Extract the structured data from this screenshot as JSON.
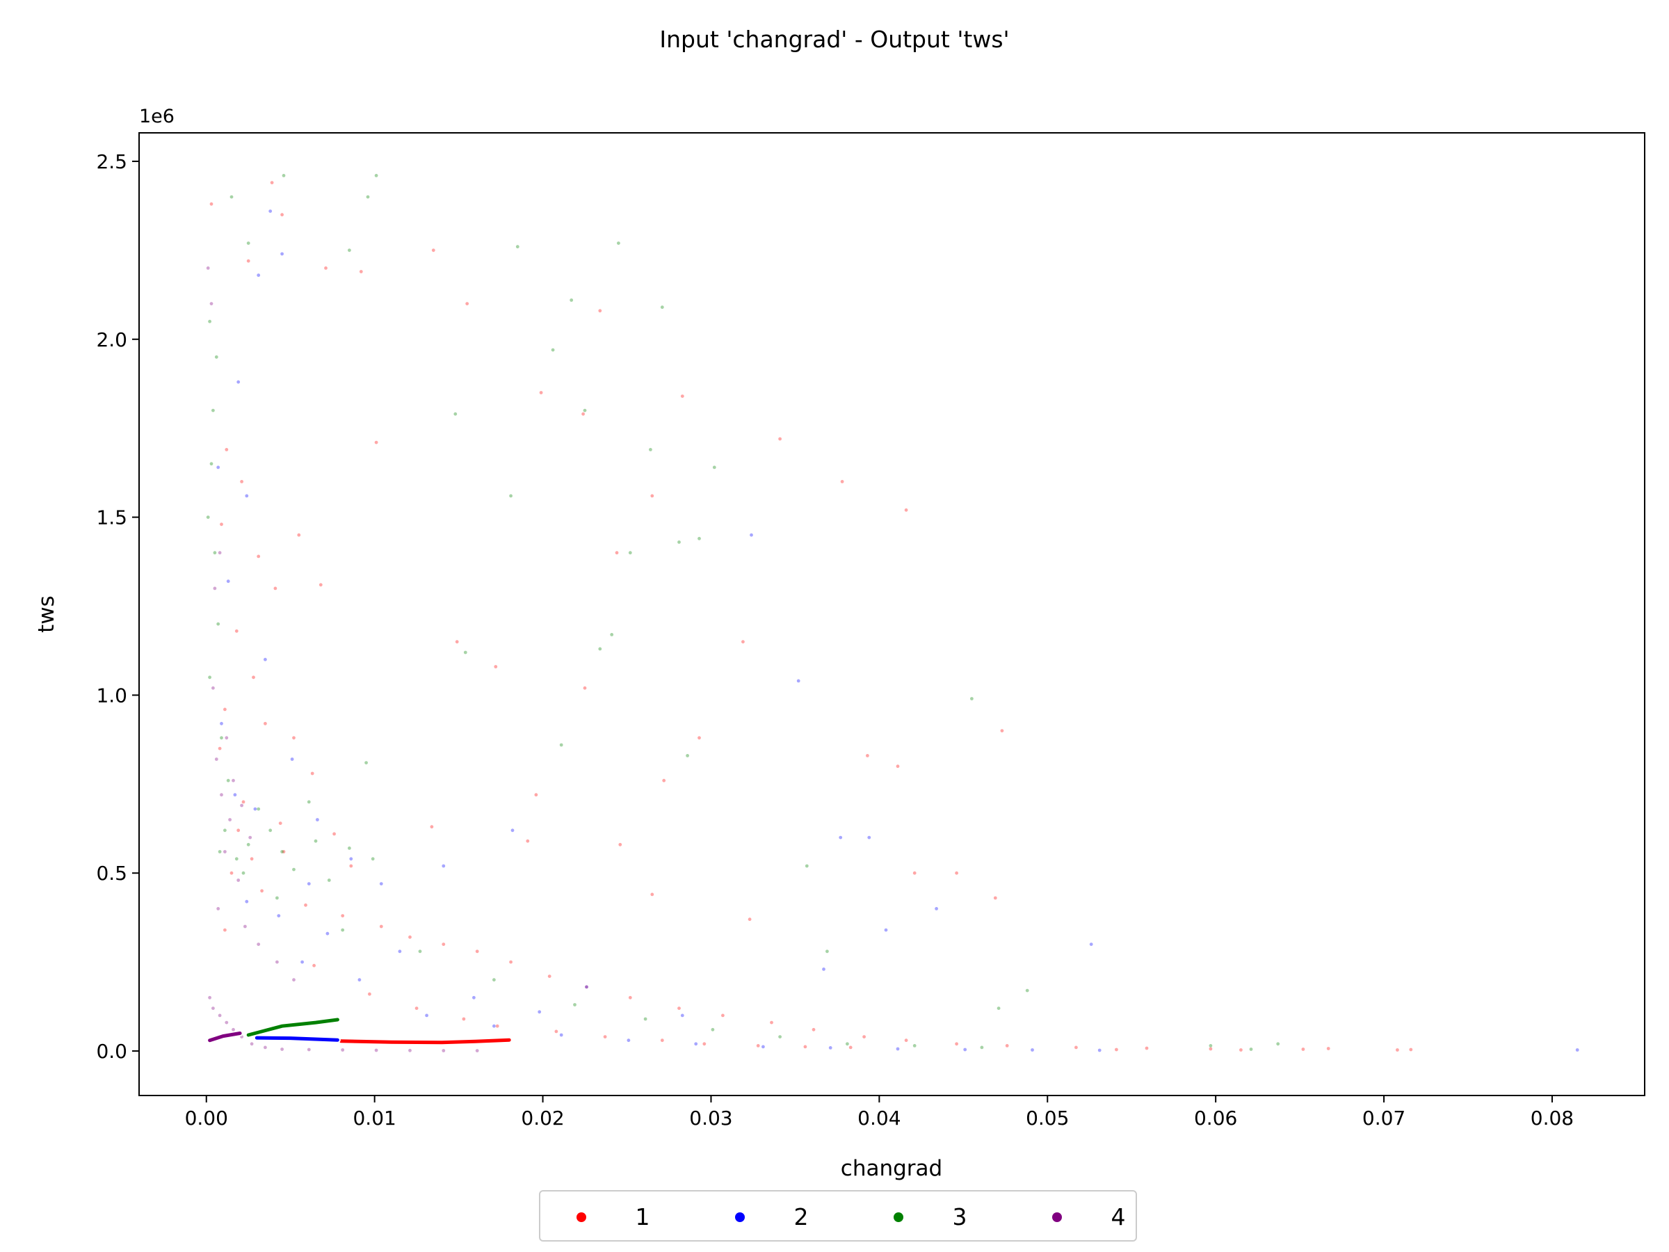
{
  "chart_data": {
    "type": "scatter",
    "title": "Input 'changrad' - Output 'tws'",
    "xlabel": "changrad",
    "ylabel": "tws",
    "y_offset_label": "1e6",
    "xlim": [
      -0.004,
      0.0855
    ],
    "ylim": [
      -125000,
      2580000
    ],
    "x_ticks": [
      0.0,
      0.01,
      0.02,
      0.03,
      0.04,
      0.05,
      0.06,
      0.07,
      0.08
    ],
    "x_tick_labels": [
      "0.00",
      "0.01",
      "0.02",
      "0.03",
      "0.04",
      "0.05",
      "0.06",
      "0.07",
      "0.08"
    ],
    "y_ticks": [
      0,
      500000,
      1000000,
      1500000,
      2000000,
      2500000
    ],
    "y_tick_labels": [
      "0.0",
      "0.5",
      "1.0",
      "1.5",
      "2.0",
      "2.5"
    ],
    "grid": false,
    "legend": {
      "placement": "bottom-center, below axes",
      "entries": [
        "1",
        "2",
        "3",
        "4"
      ]
    },
    "series": [
      {
        "name": "1",
        "color": "#ff0000",
        "trend": {
          "x": [
            0.008,
            0.011,
            0.014,
            0.016,
            0.018
          ],
          "y": [
            28000,
            25000,
            24000,
            27000,
            31000
          ]
        },
        "points": [
          [
            0.0003,
            2380000
          ],
          [
            0.0025,
            2220000
          ],
          [
            0.0039,
            2440000
          ],
          [
            0.0045,
            2350000
          ],
          [
            0.0071,
            2200000
          ],
          [
            0.0092,
            2190000
          ],
          [
            0.0135,
            2250000
          ],
          [
            0.0155,
            2100000
          ],
          [
            0.0199,
            1850000
          ],
          [
            0.0224,
            1790000
          ],
          [
            0.0234,
            2080000
          ],
          [
            0.0283,
            1840000
          ],
          [
            0.0101,
            1710000
          ],
          [
            0.0341,
            1720000
          ],
          [
            0.0378,
            1600000
          ],
          [
            0.0416,
            1520000
          ],
          [
            0.0244,
            1400000
          ],
          [
            0.0265,
            1560000
          ],
          [
            0.0172,
            1080000
          ],
          [
            0.0149,
            1150000
          ],
          [
            0.0225,
            1020000
          ],
          [
            0.0319,
            1150000
          ],
          [
            0.0293,
            880000
          ],
          [
            0.0393,
            830000
          ],
          [
            0.0411,
            800000
          ],
          [
            0.0473,
            900000
          ],
          [
            0.0272,
            760000
          ],
          [
            0.0196,
            720000
          ],
          [
            0.0134,
            630000
          ],
          [
            0.0246,
            580000
          ],
          [
            0.0323,
            370000
          ],
          [
            0.0421,
            500000
          ],
          [
            0.0446,
            500000
          ],
          [
            0.0469,
            430000
          ],
          [
            0.0265,
            440000
          ],
          [
            0.0191,
            590000
          ],
          [
            0.0012,
            1690000
          ],
          [
            0.0021,
            1600000
          ],
          [
            0.0009,
            1480000
          ],
          [
            0.0031,
            1390000
          ],
          [
            0.0041,
            1300000
          ],
          [
            0.0055,
            1450000
          ],
          [
            0.0068,
            1310000
          ],
          [
            0.0018,
            1180000
          ],
          [
            0.0028,
            1050000
          ],
          [
            0.0011,
            960000
          ],
          [
            0.0035,
            920000
          ],
          [
            0.0052,
            880000
          ],
          [
            0.0063,
            780000
          ],
          [
            0.0008,
            850000
          ],
          [
            0.0022,
            700000
          ],
          [
            0.0044,
            640000
          ],
          [
            0.0076,
            610000
          ],
          [
            0.0086,
            520000
          ],
          [
            0.0015,
            500000
          ],
          [
            0.0033,
            450000
          ],
          [
            0.0059,
            410000
          ],
          [
            0.0081,
            380000
          ],
          [
            0.0104,
            350000
          ],
          [
            0.0121,
            320000
          ],
          [
            0.0141,
            300000
          ],
          [
            0.0161,
            280000
          ],
          [
            0.0181,
            250000
          ],
          [
            0.0204,
            210000
          ],
          [
            0.0226,
            180000
          ],
          [
            0.0252,
            150000
          ],
          [
            0.0281,
            120000
          ],
          [
            0.0307,
            100000
          ],
          [
            0.0336,
            80000
          ],
          [
            0.0361,
            60000
          ],
          [
            0.0391,
            40000
          ],
          [
            0.0416,
            30000
          ],
          [
            0.0446,
            20000
          ],
          [
            0.0476,
            15000
          ],
          [
            0.0517,
            10000
          ],
          [
            0.0559,
            8000
          ],
          [
            0.0597,
            6000
          ],
          [
            0.0652,
            5000
          ],
          [
            0.0667,
            7000
          ],
          [
            0.0708,
            3000
          ],
          [
            0.0716,
            4000
          ],
          [
            0.0615,
            3000
          ],
          [
            0.0541,
            4000
          ],
          [
            0.0027,
            540000
          ],
          [
            0.0019,
            620000
          ],
          [
            0.0046,
            560000
          ],
          [
            0.0011,
            340000
          ],
          [
            0.0064,
            240000
          ],
          [
            0.0097,
            160000
          ],
          [
            0.0125,
            120000
          ],
          [
            0.0153,
            90000
          ],
          [
            0.0173,
            70000
          ],
          [
            0.0208,
            55000
          ],
          [
            0.0237,
            40000
          ],
          [
            0.0271,
            30000
          ],
          [
            0.0296,
            20000
          ],
          [
            0.0328,
            15000
          ],
          [
            0.0356,
            12000
          ],
          [
            0.0383,
            10000
          ]
        ]
      },
      {
        "name": "2",
        "color": "#0000ff",
        "trend": {
          "x": [
            0.003,
            0.005,
            0.0078
          ],
          "y": [
            37000,
            36000,
            31000
          ]
        },
        "points": [
          [
            0.0038,
            2360000
          ],
          [
            0.0045,
            2240000
          ],
          [
            0.0031,
            2180000
          ],
          [
            0.0019,
            1880000
          ],
          [
            0.0007,
            1640000
          ],
          [
            0.0024,
            1560000
          ],
          [
            0.0013,
            1320000
          ],
          [
            0.0035,
            1100000
          ],
          [
            0.0009,
            920000
          ],
          [
            0.0051,
            820000
          ],
          [
            0.0017,
            720000
          ],
          [
            0.0029,
            680000
          ],
          [
            0.0066,
            650000
          ],
          [
            0.0086,
            540000
          ],
          [
            0.0104,
            470000
          ],
          [
            0.0182,
            620000
          ],
          [
            0.0324,
            1450000
          ],
          [
            0.0352,
            1040000
          ],
          [
            0.0377,
            600000
          ],
          [
            0.0394,
            600000
          ],
          [
            0.0404,
            340000
          ],
          [
            0.0434,
            400000
          ],
          [
            0.0526,
            300000
          ],
          [
            0.0226,
            180000
          ],
          [
            0.0159,
            150000
          ],
          [
            0.0115,
            280000
          ],
          [
            0.0072,
            330000
          ],
          [
            0.0043,
            380000
          ],
          [
            0.0024,
            420000
          ],
          [
            0.0057,
            250000
          ],
          [
            0.0091,
            200000
          ],
          [
            0.0131,
            100000
          ],
          [
            0.0171,
            70000
          ],
          [
            0.0211,
            45000
          ],
          [
            0.0251,
            30000
          ],
          [
            0.0291,
            20000
          ],
          [
            0.0331,
            12000
          ],
          [
            0.0371,
            9000
          ],
          [
            0.0411,
            6000
          ],
          [
            0.0451,
            4000
          ],
          [
            0.0491,
            3000
          ],
          [
            0.0531,
            2000
          ],
          [
            0.0815,
            3000
          ],
          [
            0.0283,
            100000
          ],
          [
            0.0367,
            230000
          ],
          [
            0.0198,
            110000
          ],
          [
            0.0141,
            520000
          ],
          [
            0.0061,
            470000
          ]
        ]
      },
      {
        "name": "3",
        "color": "#008000",
        "trend": {
          "x": [
            0.0025,
            0.0045,
            0.0065,
            0.0078
          ],
          "y": [
            45000,
            70000,
            80000,
            88000
          ]
        },
        "points": [
          [
            0.0046,
            2460000
          ],
          [
            0.0101,
            2460000
          ],
          [
            0.0096,
            2400000
          ],
          [
            0.0085,
            2250000
          ],
          [
            0.0015,
            2400000
          ],
          [
            0.0025,
            2270000
          ],
          [
            0.0185,
            2260000
          ],
          [
            0.0245,
            2270000
          ],
          [
            0.0217,
            2110000
          ],
          [
            0.0271,
            2090000
          ],
          [
            0.0206,
            1970000
          ],
          [
            0.0225,
            1800000
          ],
          [
            0.0148,
            1790000
          ],
          [
            0.0264,
            1690000
          ],
          [
            0.0181,
            1560000
          ],
          [
            0.0302,
            1640000
          ],
          [
            0.0252,
            1400000
          ],
          [
            0.0281,
            1430000
          ],
          [
            0.0293,
            1440000
          ],
          [
            0.0241,
            1170000
          ],
          [
            0.0234,
            1130000
          ],
          [
            0.0154,
            1120000
          ],
          [
            0.0455,
            990000
          ],
          [
            0.0211,
            860000
          ],
          [
            0.0286,
            830000
          ],
          [
            0.0095,
            810000
          ],
          [
            0.0061,
            700000
          ],
          [
            0.0031,
            680000
          ],
          [
            0.0011,
            620000
          ],
          [
            0.0008,
            560000
          ],
          [
            0.0025,
            580000
          ],
          [
            0.0045,
            560000
          ],
          [
            0.0065,
            590000
          ],
          [
            0.0085,
            570000
          ],
          [
            0.0099,
            540000
          ],
          [
            0.0038,
            620000
          ],
          [
            0.0052,
            510000
          ],
          [
            0.0073,
            480000
          ],
          [
            0.0002,
            2050000
          ],
          [
            0.0006,
            1950000
          ],
          [
            0.0004,
            1800000
          ],
          [
            0.0003,
            1650000
          ],
          [
            0.0001,
            1500000
          ],
          [
            0.0005,
            1400000
          ],
          [
            0.0007,
            1200000
          ],
          [
            0.0002,
            1050000
          ],
          [
            0.0009,
            880000
          ],
          [
            0.0013,
            760000
          ],
          [
            0.0018,
            540000
          ],
          [
            0.0022,
            500000
          ],
          [
            0.0042,
            430000
          ],
          [
            0.0081,
            340000
          ],
          [
            0.0127,
            280000
          ],
          [
            0.0171,
            200000
          ],
          [
            0.0219,
            130000
          ],
          [
            0.0261,
            90000
          ],
          [
            0.0301,
            60000
          ],
          [
            0.0341,
            40000
          ],
          [
            0.0381,
            20000
          ],
          [
            0.0421,
            15000
          ],
          [
            0.0461,
            10000
          ],
          [
            0.0488,
            170000
          ],
          [
            0.0471,
            120000
          ],
          [
            0.0369,
            280000
          ],
          [
            0.0357,
            520000
          ],
          [
            0.0597,
            15000
          ],
          [
            0.0637,
            20000
          ],
          [
            0.0621,
            5000
          ]
        ]
      },
      {
        "name": "4",
        "color": "#800080",
        "trend": {
          "x": [
            0.0002,
            0.001,
            0.002
          ],
          "y": [
            30000,
            42000,
            50000
          ]
        },
        "points": [
          [
            0.0004,
            1020000
          ],
          [
            0.0012,
            880000
          ],
          [
            0.0006,
            820000
          ],
          [
            0.0016,
            760000
          ],
          [
            0.0009,
            720000
          ],
          [
            0.0021,
            690000
          ],
          [
            0.0014,
            650000
          ],
          [
            0.0026,
            600000
          ],
          [
            0.0011,
            560000
          ],
          [
            0.0019,
            480000
          ],
          [
            0.0007,
            400000
          ],
          [
            0.0023,
            350000
          ],
          [
            0.0031,
            300000
          ],
          [
            0.0042,
            250000
          ],
          [
            0.0052,
            200000
          ],
          [
            0.0002,
            150000
          ],
          [
            0.0004,
            120000
          ],
          [
            0.0008,
            100000
          ],
          [
            0.0012,
            80000
          ],
          [
            0.0016,
            60000
          ],
          [
            0.0021,
            40000
          ],
          [
            0.0027,
            20000
          ],
          [
            0.0035,
            10000
          ],
          [
            0.0045,
            5000
          ],
          [
            0.0061,
            4000
          ],
          [
            0.0081,
            3000
          ],
          [
            0.0101,
            2000
          ],
          [
            0.0121,
            1500
          ],
          [
            0.0141,
            1000
          ],
          [
            0.0161,
            800
          ],
          [
            0.0001,
            2200000
          ],
          [
            0.0003,
            2100000
          ],
          [
            0.0005,
            1300000
          ],
          [
            0.0008,
            1400000
          ]
        ]
      }
    ]
  }
}
